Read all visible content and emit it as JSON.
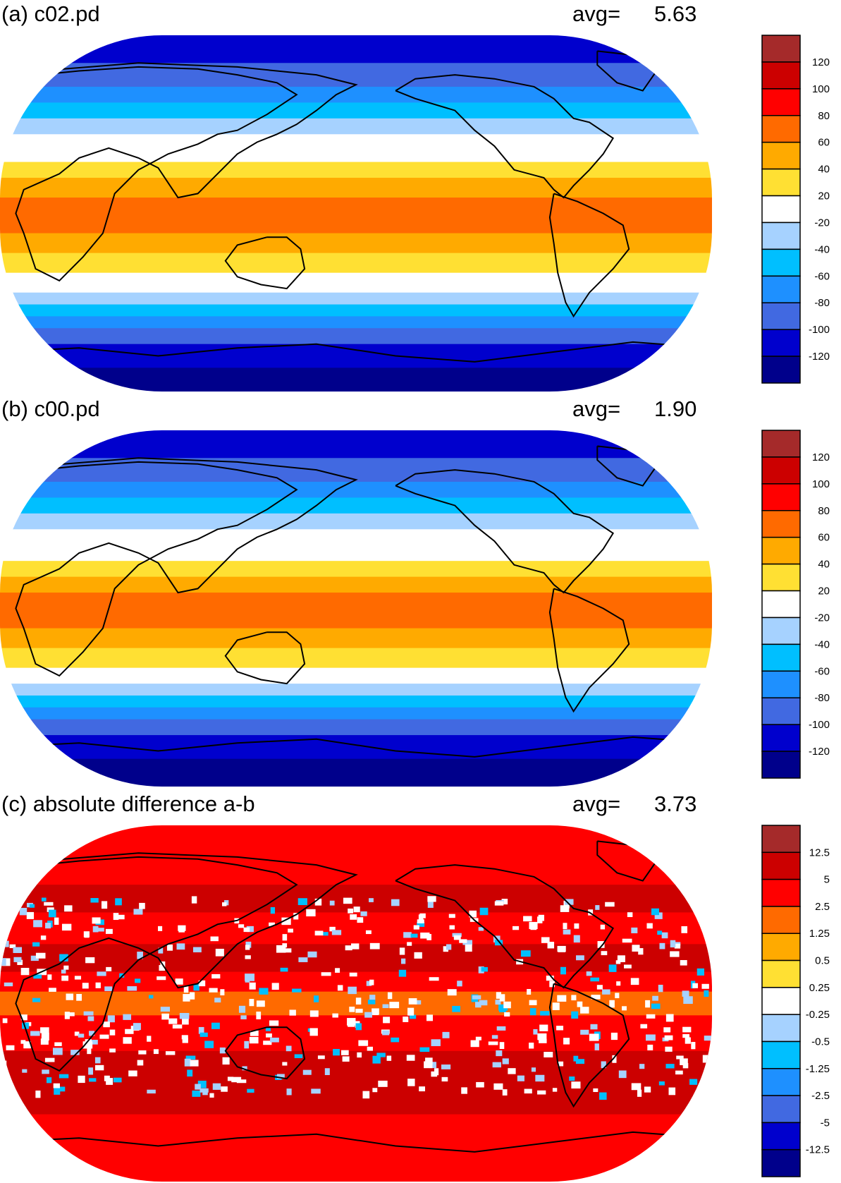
{
  "panels": [
    {
      "id": "a",
      "title": "(a) c02.pd",
      "avg_label": "avg=",
      "avg_value": "5.63",
      "colorbar_labels": [
        "120",
        "100",
        "80",
        "60",
        "40",
        "20",
        "-20",
        "-40",
        "-60",
        "-80",
        "-100",
        "-120"
      ],
      "colorbar_colors": [
        "#a52a2a",
        "#cc0000",
        "#ff0000",
        "#ff6a00",
        "#ffaa00",
        "#ffe033",
        "#ffffff",
        "#a6d2ff",
        "#00bfff",
        "#1e90ff",
        "#4169e1",
        "#0000cd",
        "#00008b"
      ],
      "bands": [
        {
          "lat": 90,
          "class": 11
        },
        {
          "lat": 76,
          "class": 10
        },
        {
          "lat": 64,
          "class": 9
        },
        {
          "lat": 56,
          "class": 8
        },
        {
          "lat": 48,
          "class": 7
        },
        {
          "lat": 40,
          "class": 6
        },
        {
          "lat": 34,
          "class": 6
        },
        {
          "lat": 26,
          "class": 5
        },
        {
          "lat": 18,
          "class": 4
        },
        {
          "lat": 8,
          "class": 3
        },
        {
          "lat": -2,
          "class": 3
        },
        {
          "lat": -10,
          "class": 4
        },
        {
          "lat": -20,
          "class": 5
        },
        {
          "lat": -30,
          "class": 6
        },
        {
          "lat": -40,
          "class": 7
        },
        {
          "lat": -46,
          "class": 8
        },
        {
          "lat": -52,
          "class": 9
        },
        {
          "lat": -58,
          "class": 10
        },
        {
          "lat": -66,
          "class": 11
        },
        {
          "lat": -78,
          "class": 12
        }
      ]
    },
    {
      "id": "b",
      "title": "(b) c00.pd",
      "avg_label": "avg=",
      "avg_value": "1.90",
      "colorbar_labels": [
        "120",
        "100",
        "80",
        "60",
        "40",
        "20",
        "-20",
        "-40",
        "-60",
        "-80",
        "-100",
        "-120"
      ],
      "colorbar_colors": [
        "#a52a2a",
        "#cc0000",
        "#ff0000",
        "#ff6a00",
        "#ffaa00",
        "#ffe033",
        "#ffffff",
        "#a6d2ff",
        "#00bfff",
        "#1e90ff",
        "#4169e1",
        "#0000cd",
        "#00008b"
      ],
      "bands": [
        {
          "lat": 90,
          "class": 11
        },
        {
          "lat": 76,
          "class": 10
        },
        {
          "lat": 64,
          "class": 9
        },
        {
          "lat": 56,
          "class": 8
        },
        {
          "lat": 48,
          "class": 7
        },
        {
          "lat": 40,
          "class": 6
        },
        {
          "lat": 32,
          "class": 6
        },
        {
          "lat": 24,
          "class": 5
        },
        {
          "lat": 16,
          "class": 4
        },
        {
          "lat": 8,
          "class": 3
        },
        {
          "lat": -2,
          "class": 3
        },
        {
          "lat": -10,
          "class": 4
        },
        {
          "lat": -20,
          "class": 5
        },
        {
          "lat": -30,
          "class": 6
        },
        {
          "lat": -38,
          "class": 7
        },
        {
          "lat": -44,
          "class": 8
        },
        {
          "lat": -50,
          "class": 9
        },
        {
          "lat": -56,
          "class": 10
        },
        {
          "lat": -64,
          "class": 11
        },
        {
          "lat": -76,
          "class": 12
        }
      ]
    },
    {
      "id": "c",
      "title": "(c) absolute difference a-b",
      "avg_label": "avg=",
      "avg_value": "3.73",
      "colorbar_labels": [
        "12.5",
        "5",
        "2.5",
        "1.25",
        "0.5",
        "0.25",
        "-0.25",
        "-0.5",
        "-1.25",
        "-2.5",
        "-5",
        "-12.5"
      ],
      "colorbar_colors": [
        "#a52a2a",
        "#cc0000",
        "#ff0000",
        "#ff6a00",
        "#ffaa00",
        "#ffe033",
        "#ffffff",
        "#a6d2ff",
        "#00bfff",
        "#1e90ff",
        "#4169e1",
        "#0000cd",
        "#00008b"
      ],
      "bands": [
        {
          "lat": 90,
          "class": 2
        },
        {
          "lat": 60,
          "class": 1
        },
        {
          "lat": 46,
          "class": 2
        },
        {
          "lat": 30,
          "class": 1
        },
        {
          "lat": 16,
          "class": 2
        },
        {
          "lat": 6,
          "class": 3
        },
        {
          "lat": -6,
          "class": 2
        },
        {
          "lat": -24,
          "class": 1
        },
        {
          "lat": -40,
          "class": 1
        },
        {
          "lat": -56,
          "class": 2
        },
        {
          "lat": -70,
          "class": 2
        }
      ]
    }
  ]
}
